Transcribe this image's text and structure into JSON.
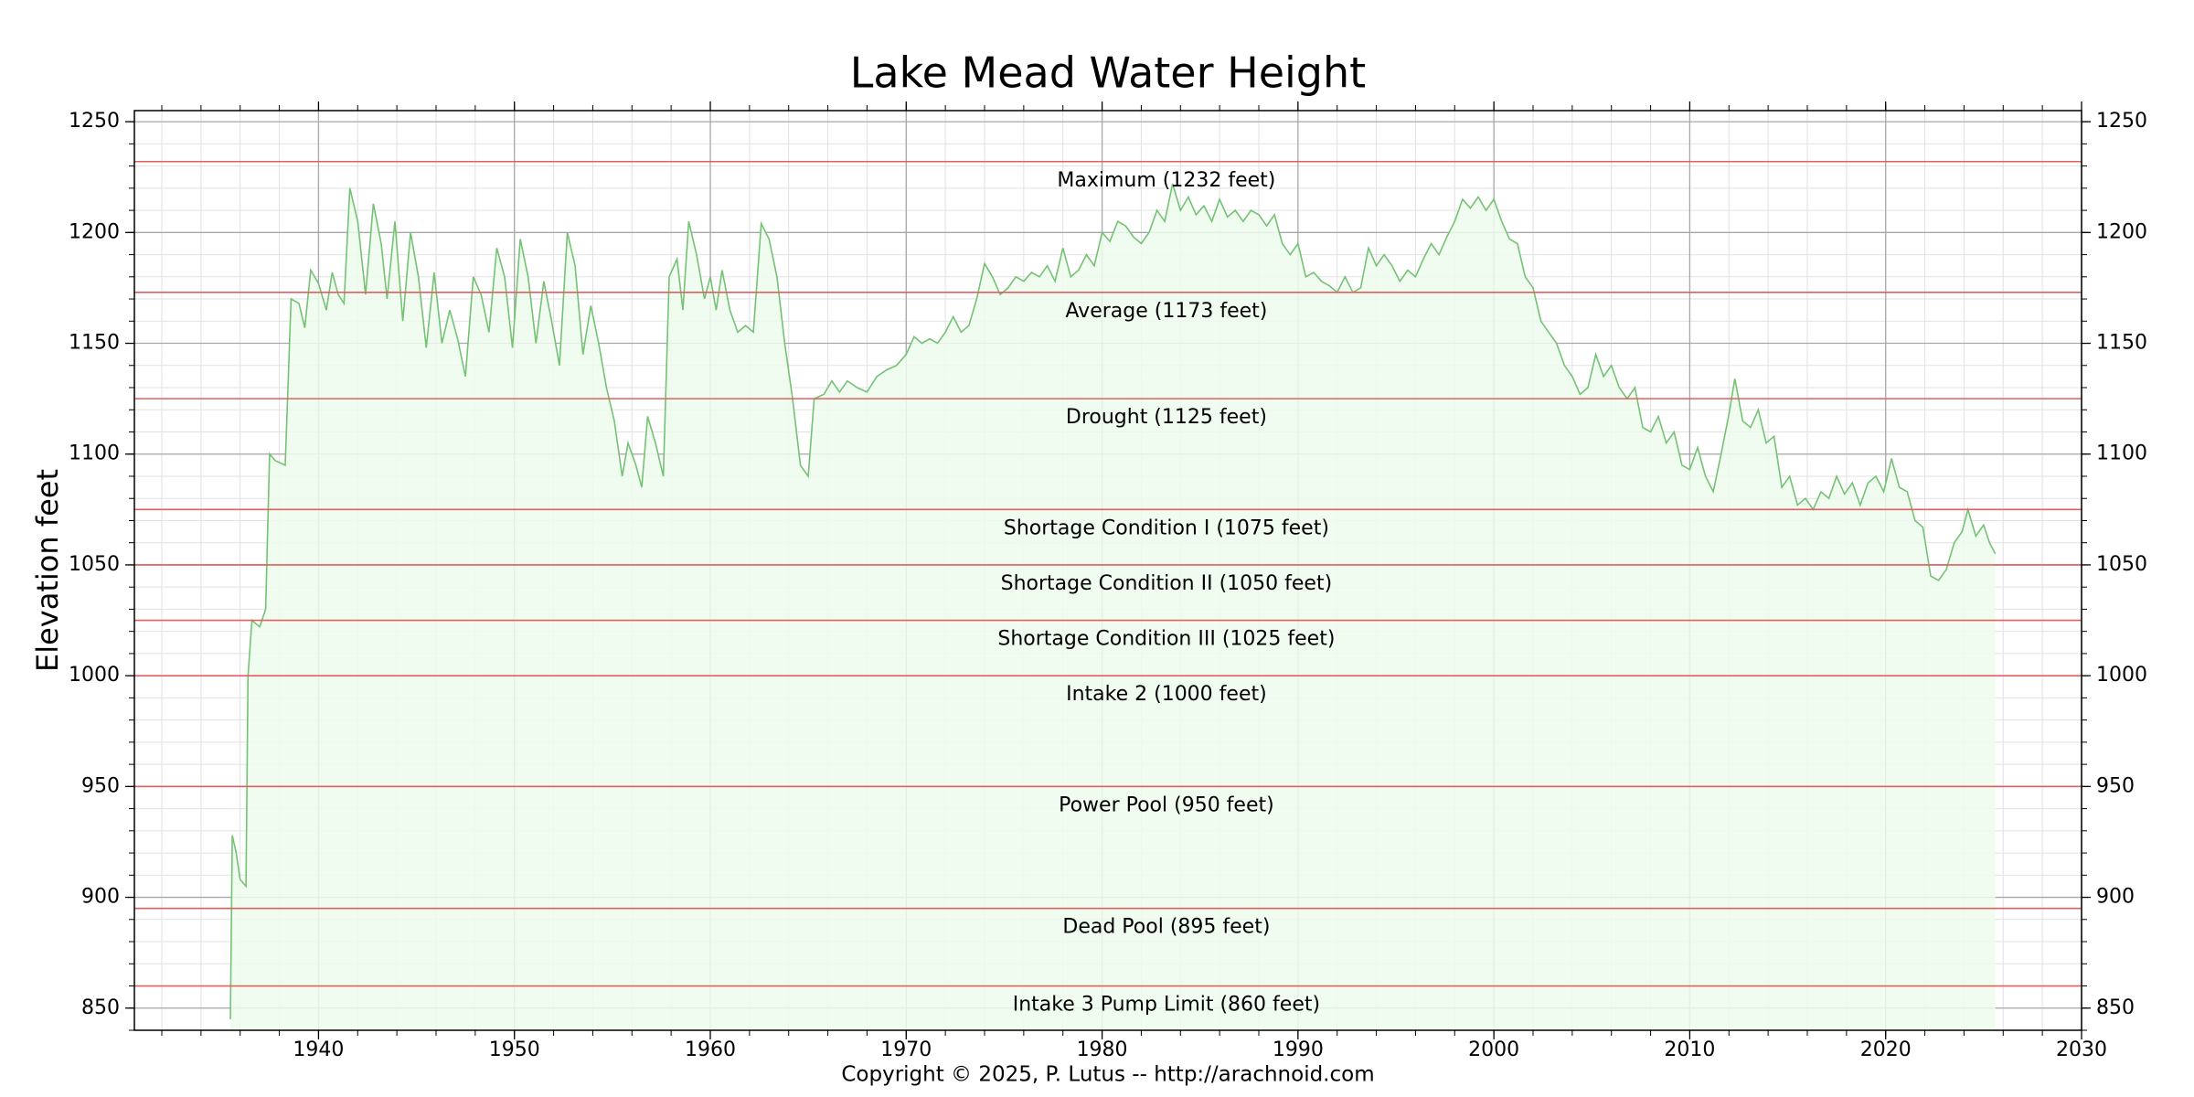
{
  "chart_data": {
    "type": "line",
    "title": "Lake Mead Water Height",
    "y_label": "Elevation feet",
    "footer": "Copyright © 2025, P. Lutus -- http://arachnoid.com",
    "color": "#74c274",
    "fill_color": "#eefcee",
    "reference_color": "#e06060",
    "grid": true,
    "xlim": [
      1930.6,
      2030
    ],
    "ylim": [
      840,
      1255
    ],
    "xticks": [
      1940,
      1950,
      1960,
      1970,
      1980,
      1990,
      2000,
      2010,
      2020,
      2030
    ],
    "yticks": [
      850,
      900,
      950,
      1000,
      1050,
      1100,
      1150,
      1200,
      1250
    ],
    "reference_lines": [
      {
        "label": "Maximum (1232 feet)",
        "value": 1232
      },
      {
        "label": "Average (1173 feet)",
        "value": 1173
      },
      {
        "label": "Drought (1125 feet)",
        "value": 1125
      },
      {
        "label": "Shortage Condition I (1075 feet)",
        "value": 1075
      },
      {
        "label": "Shortage Condition II (1050 feet)",
        "value": 1050
      },
      {
        "label": "Shortage Condition III (1025 feet)",
        "value": 1025
      },
      {
        "label": "Intake 2 (1000 feet)",
        "value": 1000
      },
      {
        "label": "Power Pool (950 feet)",
        "value": 950
      },
      {
        "label": "Dead Pool (895 feet)",
        "value": 895
      },
      {
        "label": "Intake 3 Pump Limit (860 feet)",
        "value": 860
      }
    ],
    "x": [
      1935.5,
      1935.6,
      1935.8,
      1936.0,
      1936.3,
      1936.4,
      1936.6,
      1937.0,
      1937.3,
      1937.5,
      1937.8,
      1938.3,
      1938.6,
      1939.0,
      1939.3,
      1939.6,
      1940.0,
      1940.4,
      1940.7,
      1941.0,
      1941.3,
      1941.6,
      1942.0,
      1942.4,
      1942.8,
      1943.2,
      1943.5,
      1943.9,
      1944.3,
      1944.7,
      1945.1,
      1945.5,
      1945.9,
      1946.3,
      1946.7,
      1947.1,
      1947.5,
      1947.9,
      1948.3,
      1948.7,
      1949.1,
      1949.5,
      1949.9,
      1950.3,
      1950.7,
      1951.1,
      1951.5,
      1951.9,
      1952.3,
      1952.7,
      1953.1,
      1953.5,
      1953.9,
      1954.3,
      1954.7,
      1955.1,
      1955.5,
      1955.8,
      1956.2,
      1956.5,
      1956.8,
      1957.2,
      1957.6,
      1957.9,
      1958.3,
      1958.6,
      1958.9,
      1959.3,
      1959.7,
      1960.0,
      1960.3,
      1960.6,
      1961.0,
      1961.4,
      1961.8,
      1962.2,
      1962.6,
      1963.0,
      1963.4,
      1963.8,
      1964.2,
      1964.6,
      1965.0,
      1965.3,
      1965.8,
      1966.2,
      1966.6,
      1967.0,
      1967.5,
      1968.0,
      1968.5,
      1969.0,
      1969.5,
      1970.0,
      1970.4,
      1970.8,
      1971.2,
      1971.6,
      1972.0,
      1972.4,
      1972.8,
      1973.2,
      1973.6,
      1974.0,
      1974.4,
      1974.8,
      1975.2,
      1975.6,
      1976.0,
      1976.4,
      1976.8,
      1977.2,
      1977.6,
      1978.0,
      1978.4,
      1978.8,
      1979.2,
      1979.6,
      1980.0,
      1980.4,
      1980.8,
      1981.2,
      1981.6,
      1982.0,
      1982.4,
      1982.8,
      1983.2,
      1983.6,
      1984.0,
      1984.4,
      1984.8,
      1985.2,
      1985.6,
      1986.0,
      1986.4,
      1986.8,
      1987.2,
      1987.6,
      1988.0,
      1988.4,
      1988.8,
      1989.2,
      1989.6,
      1990.0,
      1990.4,
      1990.8,
      1991.2,
      1991.6,
      1992.0,
      1992.4,
      1992.8,
      1993.2,
      1993.6,
      1994.0,
      1994.4,
      1994.8,
      1995.2,
      1995.6,
      1996.0,
      1996.4,
      1996.8,
      1997.2,
      1997.6,
      1998.0,
      1998.4,
      1998.8,
      1999.2,
      1999.6,
      2000.0,
      2000.4,
      2000.8,
      2001.2,
      2001.6,
      2002.0,
      2002.4,
      2002.8,
      2003.2,
      2003.6,
      2004.0,
      2004.4,
      2004.8,
      2005.2,
      2005.6,
      2006.0,
      2006.4,
      2006.8,
      2007.2,
      2007.6,
      2008.0,
      2008.4,
      2008.8,
      2009.2,
      2009.6,
      2010.0,
      2010.4,
      2010.8,
      2011.2,
      2011.6,
      2012.0,
      2012.3,
      2012.7,
      2013.1,
      2013.5,
      2013.9,
      2014.3,
      2014.7,
      2015.1,
      2015.5,
      2015.9,
      2016.3,
      2016.7,
      2017.1,
      2017.5,
      2017.9,
      2018.3,
      2018.7,
      2019.1,
      2019.5,
      2019.9,
      2020.3,
      2020.7,
      2021.1,
      2021.5,
      2021.9,
      2022.3,
      2022.7,
      2023.1,
      2023.5,
      2023.9,
      2024.2,
      2024.6,
      2025.0,
      2025.3,
      2025.6
    ],
    "values": [
      845,
      928,
      920,
      908,
      905,
      1000,
      1025,
      1022,
      1030,
      1100,
      1097,
      1095,
      1170,
      1168,
      1157,
      1183,
      1177,
      1165,
      1182,
      1172,
      1168,
      1220,
      1205,
      1172,
      1213,
      1195,
      1170,
      1205,
      1160,
      1200,
      1180,
      1148,
      1182,
      1150,
      1165,
      1152,
      1135,
      1180,
      1172,
      1155,
      1193,
      1180,
      1148,
      1197,
      1180,
      1150,
      1178,
      1160,
      1140,
      1200,
      1185,
      1145,
      1167,
      1150,
      1130,
      1115,
      1090,
      1105,
      1095,
      1085,
      1117,
      1105,
      1090,
      1180,
      1188,
      1165,
      1205,
      1190,
      1170,
      1180,
      1165,
      1183,
      1165,
      1155,
      1158,
      1155,
      1204,
      1197,
      1180,
      1150,
      1125,
      1095,
      1090,
      1125,
      1127,
      1133,
      1128,
      1133,
      1130,
      1128,
      1135,
      1138,
      1140,
      1145,
      1153,
      1150,
      1152,
      1150,
      1155,
      1162,
      1155,
      1158,
      1170,
      1186,
      1180,
      1172,
      1175,
      1180,
      1178,
      1182,
      1180,
      1185,
      1178,
      1193,
      1180,
      1183,
      1190,
      1185,
      1200,
      1196,
      1205,
      1203,
      1198,
      1195,
      1200,
      1210,
      1205,
      1222,
      1210,
      1216,
      1208,
      1212,
      1205,
      1215,
      1207,
      1210,
      1205,
      1210,
      1208,
      1203,
      1208,
      1195,
      1190,
      1195,
      1180,
      1182,
      1178,
      1176,
      1173,
      1180,
      1173,
      1175,
      1193,
      1185,
      1190,
      1185,
      1178,
      1183,
      1180,
      1188,
      1195,
      1190,
      1198,
      1205,
      1215,
      1211,
      1216,
      1210,
      1215,
      1205,
      1197,
      1195,
      1180,
      1175,
      1160,
      1155,
      1150,
      1140,
      1135,
      1127,
      1130,
      1145,
      1135,
      1140,
      1130,
      1125,
      1130,
      1112,
      1110,
      1117,
      1105,
      1110,
      1095,
      1093,
      1103,
      1090,
      1083,
      1100,
      1118,
      1134,
      1115,
      1112,
      1120,
      1105,
      1108,
      1085,
      1090,
      1077,
      1080,
      1075,
      1083,
      1080,
      1090,
      1082,
      1087,
      1077,
      1087,
      1090,
      1083,
      1098,
      1085,
      1083,
      1070,
      1067,
      1045,
      1043,
      1048,
      1060,
      1065,
      1075,
      1063,
      1068,
      1060,
      1055
    ]
  }
}
